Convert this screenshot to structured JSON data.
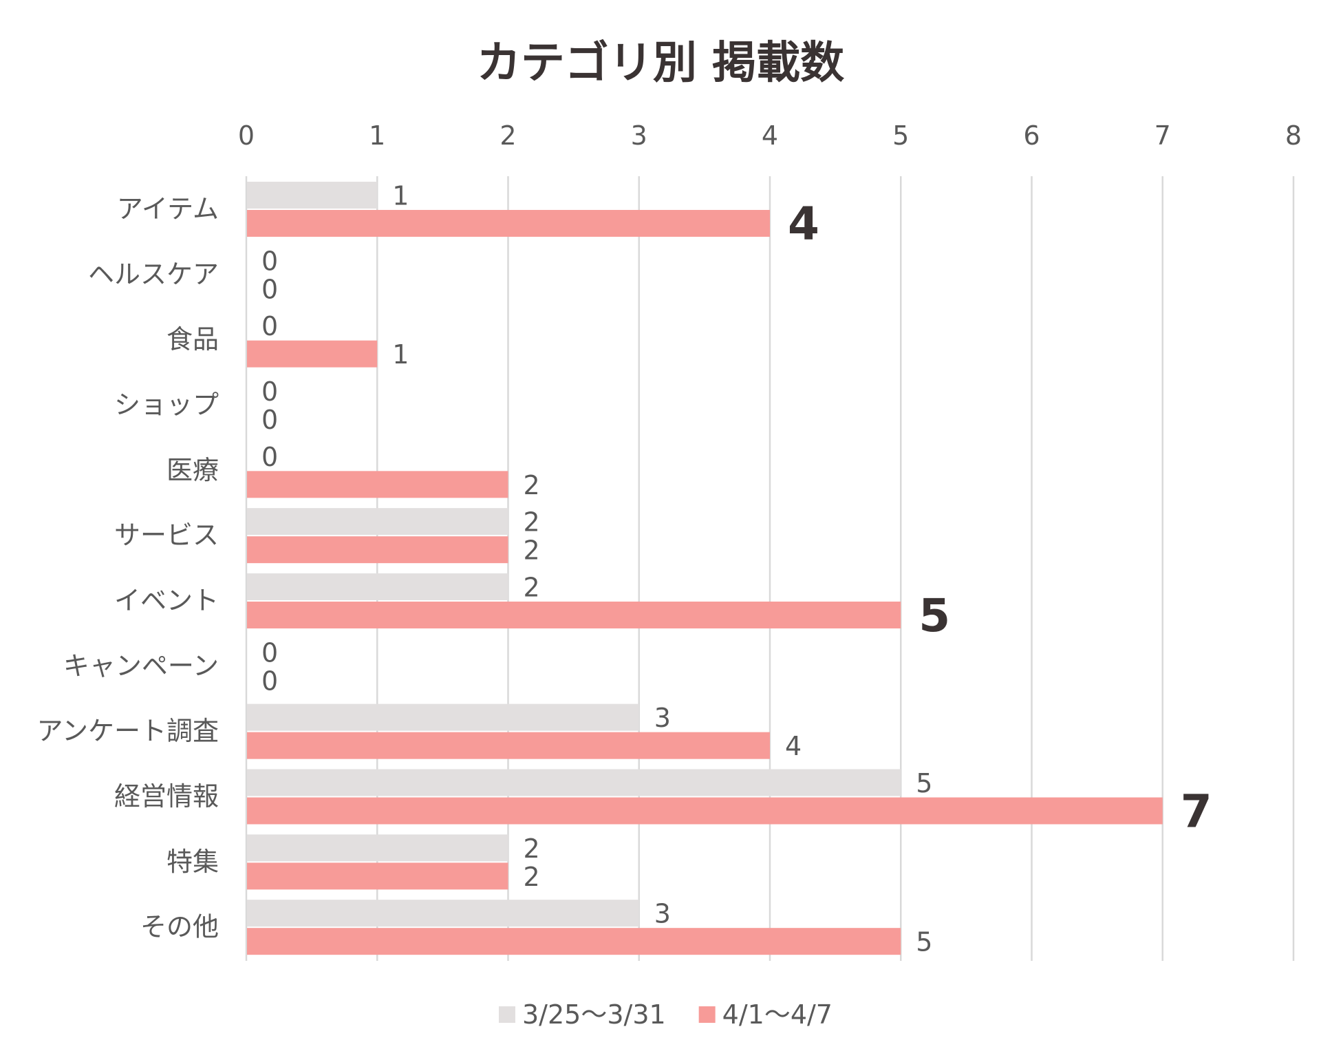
{
  "chart_data": {
    "type": "bar",
    "orientation": "horizontal",
    "title": "カテゴリ別 掲載数",
    "xlim": [
      0,
      8
    ],
    "x_ticks": [
      "0",
      "1",
      "2",
      "3",
      "4",
      "5",
      "6",
      "7",
      "8"
    ],
    "x_axis_position": "top",
    "grid": true,
    "legend_position": "bottom",
    "categories": [
      "アイテム",
      "ヘルスケア",
      "食品",
      "ショップ",
      "医療",
      "サービス",
      "イベント",
      "キャンペーン",
      "アンケート調査",
      "経営情報",
      "特集",
      "その他"
    ],
    "series": [
      {
        "name": "3/25〜3/31",
        "color": "#e2dfdf",
        "values": [
          1,
          0,
          0,
          0,
          0,
          2,
          2,
          0,
          3,
          5,
          2,
          3
        ]
      },
      {
        "name": "4/1〜4/7",
        "color": "#f79b98",
        "values": [
          4,
          0,
          1,
          0,
          2,
          2,
          5,
          0,
          4,
          7,
          2,
          5
        ]
      }
    ],
    "emphasized_labels": [
      {
        "category": "アイテム",
        "series": "4/1〜4/7"
      },
      {
        "category": "イベント",
        "series": "4/1〜4/7"
      },
      {
        "category": "経営情報",
        "series": "4/1〜4/7"
      }
    ],
    "colors": {
      "text": "#595959",
      "title": "#3a3333",
      "grid": "#d9d9d9",
      "emphasis": "#3a3333"
    }
  }
}
